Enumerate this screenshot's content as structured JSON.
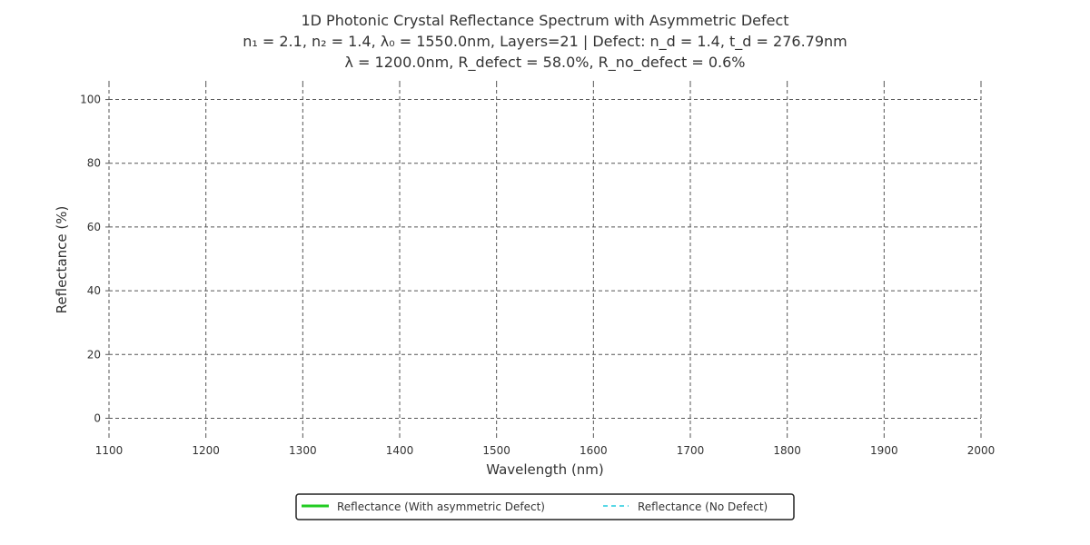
{
  "chart_data": {
    "type": "line",
    "title_lines": [
      "1D Photonic Crystal Reflectance Spectrum with Asymmetric Defect",
      "n₁ = 2.1, n₂ = 1.4, λ₀ = 1550.0nm, Layers=21 | Defect: n_d = 1.4, t_d = 276.79nm",
      "λ = 1200.0nm, R_defect = 58.0%, R_no_defect = 0.6%"
    ],
    "xlabel": "Wavelength (nm)",
    "ylabel": "Reflectance (%)",
    "xlim": [
      1100,
      2000
    ],
    "ylim": [
      -5,
      105
    ],
    "xticks": [
      1100,
      1200,
      1300,
      1400,
      1500,
      1600,
      1700,
      1800,
      1900,
      2000
    ],
    "yticks": [
      0,
      20,
      40,
      60,
      80,
      100
    ],
    "grid": true,
    "legend_position": "bottom-center",
    "series": [
      {
        "name": "Reflectance (With asymmetric Defect)",
        "color": "#22cc22",
        "style": "solid",
        "x": [],
        "y": []
      },
      {
        "name": "Reflectance (No Defect)",
        "color": "#22ccdd",
        "style": "dashed",
        "x": [],
        "y": []
      }
    ]
  }
}
